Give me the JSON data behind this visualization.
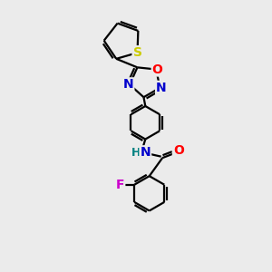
{
  "bg_color": "#ebebeb",
  "bond_color": "#000000",
  "line_width": 1.6,
  "atom_labels": {
    "S": {
      "color": "#cccc00",
      "fontsize": 10
    },
    "O": {
      "color": "#ff0000",
      "fontsize": 10
    },
    "N": {
      "color": "#0000cc",
      "fontsize": 10
    },
    "N_teal": {
      "color": "#008080",
      "fontsize": 10
    },
    "F": {
      "color": "#cc00cc",
      "fontsize": 10
    }
  },
  "scale": 1.0
}
